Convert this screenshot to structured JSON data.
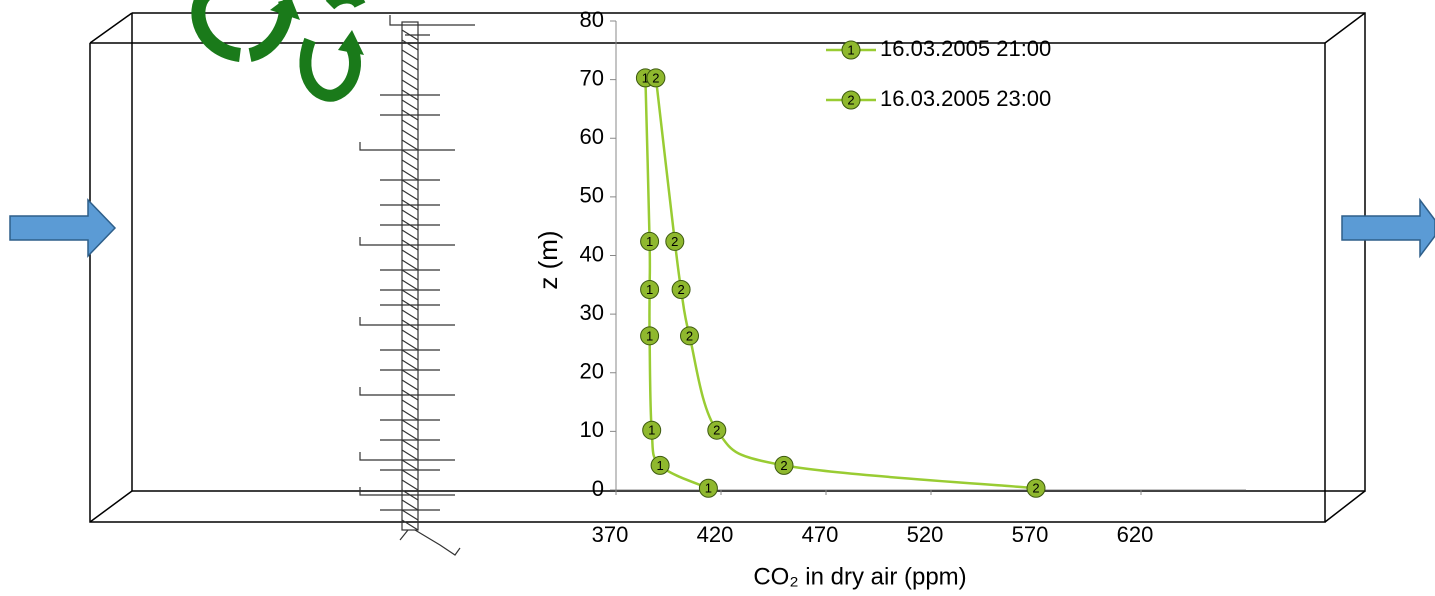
{
  "chart_data": {
    "type": "line",
    "x_label": "CO₂ in dry air (ppm)",
    "y_label": "z (m)",
    "xlim": [
      370,
      670
    ],
    "xticks": [
      370,
      420,
      470,
      520,
      570,
      620
    ],
    "ylim": [
      0,
      80
    ],
    "yticks": [
      0,
      10,
      20,
      30,
      40,
      50,
      60,
      70,
      80
    ],
    "series": [
      {
        "name": "16.03.2005 21:00",
        "marker_label": "1",
        "color": "#99cc33",
        "x": [
          414,
          391,
          387,
          386,
          386,
          386,
          384
        ],
        "values": [
          0.3,
          4.2,
          10.2,
          26.3,
          34.2,
          42.4,
          70.3
        ]
      },
      {
        "name": "16.03.2005 23:00",
        "marker_label": "2",
        "color": "#99cc33",
        "x": [
          570,
          450,
          418,
          405,
          401,
          398,
          389
        ],
        "values": [
          0.3,
          4.2,
          10.2,
          26.3,
          34.2,
          42.4,
          70.3
        ]
      }
    ]
  }
}
